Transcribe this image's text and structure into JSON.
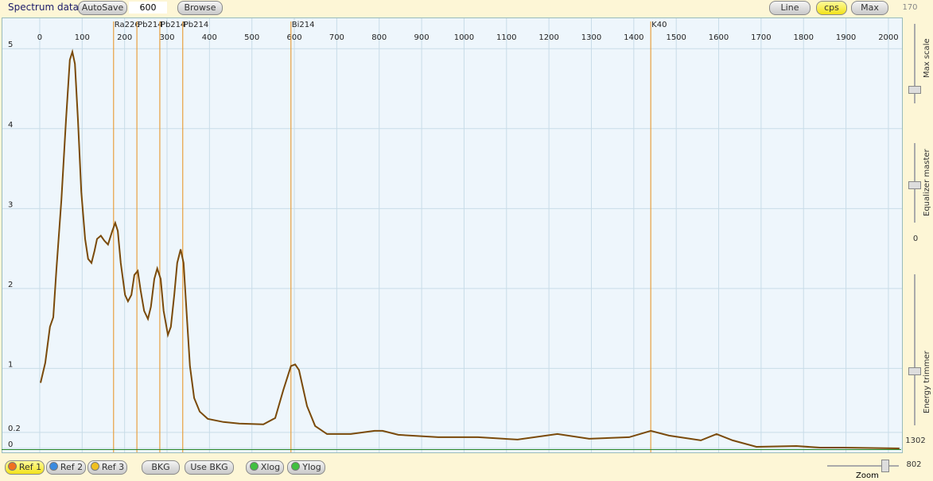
{
  "toolbar": {
    "title": "Spectrum data",
    "autosave": "AutoSave",
    "autosave_value": 600,
    "browse": "Browse",
    "line": "Line",
    "cps": "cps",
    "max": "Max"
  },
  "side_panel": {
    "max_scale_value": 170,
    "max_scale": "Max scale",
    "equalizer": "Equalizer master",
    "equalizer_value": 0,
    "energy_trimmer": "Energy trimmer",
    "energy_value": 1302,
    "zoom_value": 802,
    "zoom": "Zoom"
  },
  "bottom_bar": {
    "buttons": [
      "Ref 1",
      "Ref 2",
      "Ref 3",
      "BKG",
      "Use BKG",
      "Xlog",
      "Ylog"
    ]
  },
  "chart_data": {
    "type": "line",
    "color": "#7a4a0a",
    "grid": true,
    "xlim": [
      -88,
      2032
    ],
    "ylim": [
      -0.05,
      5.38
    ],
    "xticks": [
      0,
      100,
      200,
      300,
      400,
      500,
      600,
      700,
      800,
      900,
      1000,
      1100,
      1200,
      1300,
      1400,
      1500,
      1600,
      1700,
      1800,
      1900,
      2000
    ],
    "yticks": [
      0,
      0.2,
      1,
      2,
      3,
      4,
      5
    ],
    "markers": [
      {
        "label": "Ra226",
        "x": 174
      },
      {
        "label": "Pb214",
        "x": 229
      },
      {
        "label": "Pb214",
        "x": 283
      },
      {
        "label": "Pb214",
        "x": 337
      },
      {
        "label": "Bi214",
        "x": 592
      },
      {
        "label": "K40",
        "x": 1440
      }
    ],
    "x": [
      2,
      13,
      24,
      32,
      39,
      51,
      62,
      71,
      77,
      83,
      90,
      98,
      107,
      114,
      122,
      129,
      135,
      144,
      152,
      161,
      171,
      178,
      184,
      191,
      201,
      208,
      216,
      223,
      231,
      238,
      246,
      255,
      262,
      270,
      277,
      285,
      292,
      302,
      309,
      317,
      324,
      332,
      339,
      347,
      354,
      364,
      377,
      396,
      433,
      470,
      527,
      555,
      574,
      592,
      602,
      611,
      630,
      649,
      677,
      733,
      789,
      808,
      845,
      939,
      1033,
      1126,
      1220,
      1295,
      1389,
      1440,
      1483,
      1558,
      1595,
      1633,
      1689,
      1783,
      1839,
      1895,
      2026
    ],
    "values": [
      0.82,
      1.07,
      1.52,
      1.64,
      2.22,
      3.11,
      4.11,
      4.86,
      4.96,
      4.81,
      4.11,
      3.21,
      2.62,
      2.37,
      2.32,
      2.47,
      2.62,
      2.66,
      2.6,
      2.55,
      2.72,
      2.82,
      2.72,
      2.32,
      1.92,
      1.84,
      1.92,
      2.17,
      2.22,
      1.97,
      1.72,
      1.62,
      1.77,
      2.12,
      2.25,
      2.12,
      1.72,
      1.42,
      1.52,
      1.92,
      2.32,
      2.49,
      2.32,
      1.62,
      1.03,
      0.63,
      0.46,
      0.37,
      0.33,
      0.31,
      0.3,
      0.38,
      0.73,
      1.03,
      1.05,
      0.98,
      0.53,
      0.28,
      0.18,
      0.18,
      0.22,
      0.22,
      0.17,
      0.14,
      0.14,
      0.11,
      0.18,
      0.12,
      0.14,
      0.22,
      0.16,
      0.1,
      0.18,
      0.1,
      0.02,
      0.03,
      0.01,
      0.01,
      0
    ]
  }
}
